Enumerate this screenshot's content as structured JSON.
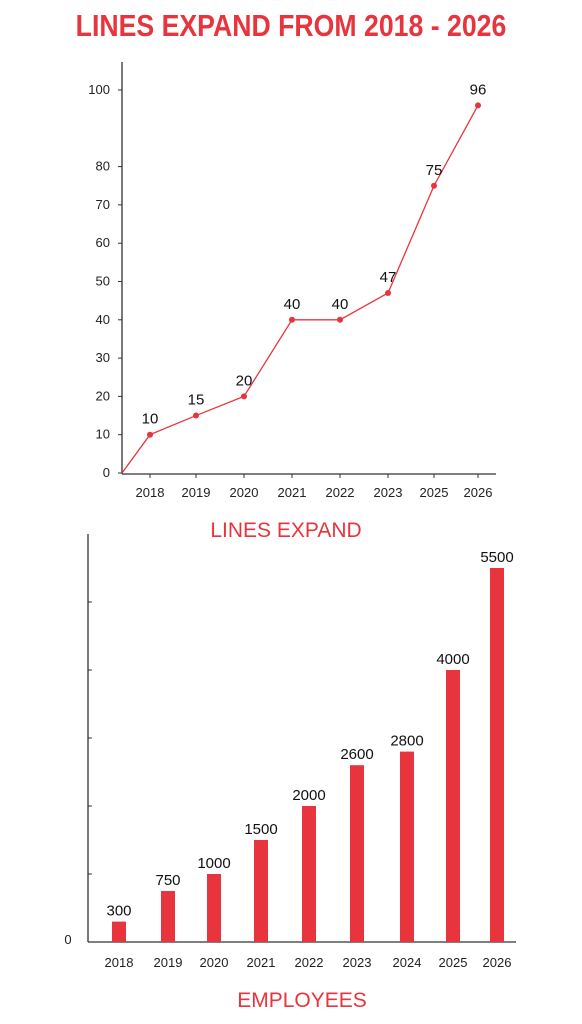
{
  "title": "LINES EXPAND FROM 2018 - 2026",
  "colors": {
    "accent": "#e8343c",
    "axis": "#333333",
    "text": "#111111"
  },
  "chart_data": [
    {
      "type": "line",
      "caption": "LINES EXPAND",
      "categories": [
        "2018",
        "2019",
        "2020",
        "2021",
        "2022",
        "2023",
        "2025",
        "2026"
      ],
      "values": [
        10,
        15,
        20,
        40,
        40,
        47,
        75,
        96
      ],
      "data_labels": [
        "10",
        "15",
        "20",
        "40",
        "40",
        "47",
        "75",
        "96"
      ],
      "y_ticks": [
        "0",
        "10",
        "20",
        "30",
        "40",
        "50",
        "60",
        "70",
        "80",
        "100"
      ],
      "ylim": [
        0,
        100
      ],
      "grid": false,
      "series_color": "#e8343c"
    },
    {
      "type": "bar",
      "caption": "EMPLOYEES",
      "categories": [
        "2018",
        "2019",
        "2020",
        "2021",
        "2022",
        "2023",
        "2024",
        "2025",
        "2026"
      ],
      "values": [
        300,
        750,
        1000,
        1500,
        2000,
        2600,
        2800,
        4000,
        5500
      ],
      "data_labels": [
        "300",
        "750",
        "1000",
        "1500",
        "2000",
        "2600",
        "2800",
        "4000",
        "5500"
      ],
      "y_tick_labels": [
        "0"
      ],
      "ylim": [
        0,
        6000
      ],
      "grid": false,
      "series_color": "#e8343c"
    }
  ]
}
